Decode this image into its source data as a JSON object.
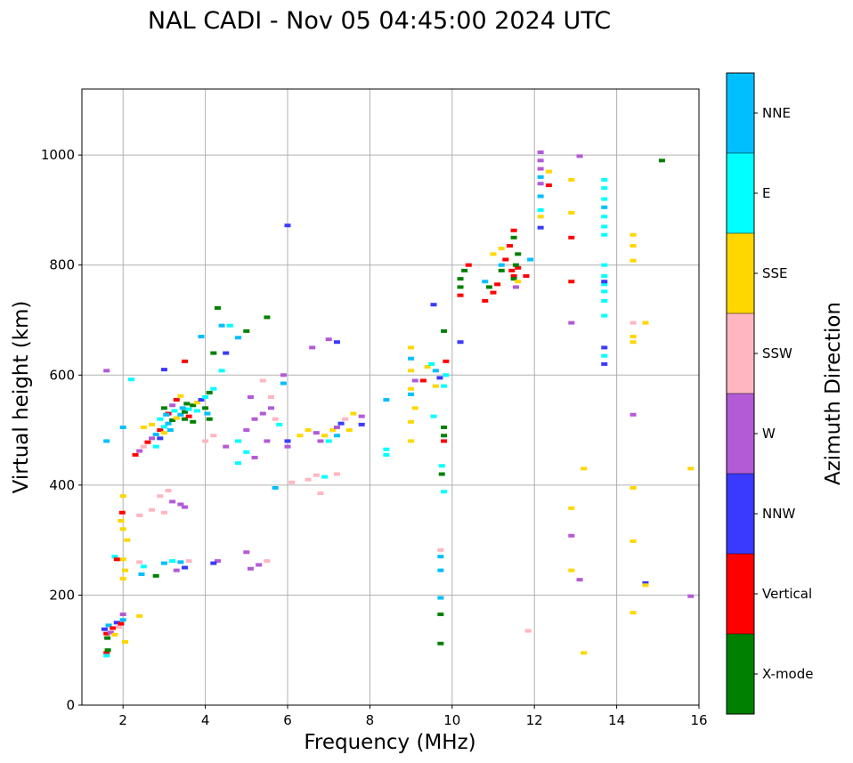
{
  "chart_data": {
    "type": "scatter",
    "title": "NAL CADI - Nov 05 04:45:00 2024 UTC",
    "xlabel": "Frequency (MHz)",
    "ylabel": "Virtual height (km)",
    "xlim": [
      1,
      16
    ],
    "ylim": [
      0,
      1120
    ],
    "xticks": [
      2,
      4,
      6,
      8,
      10,
      12,
      14,
      16
    ],
    "yticks": [
      0,
      200,
      400,
      600,
      800,
      1000
    ],
    "grid": true,
    "colorbar": {
      "label": "Azimuth Direction",
      "entries": [
        {
          "name": "X-mode",
          "color": "#008000"
        },
        {
          "name": "Vertical",
          "color": "#ff0000"
        },
        {
          "name": "NNW",
          "color": "#3a3aff"
        },
        {
          "name": "W",
          "color": "#b35ad7"
        },
        {
          "name": "SSW",
          "color": "#ffb6c1"
        },
        {
          "name": "SSE",
          "color": "#ffd700"
        },
        {
          "name": "E",
          "color": "#00ffff"
        },
        {
          "name": "NNE",
          "color": "#00bfff"
        }
      ]
    },
    "points": [
      [
        1.55,
        138,
        "NNW"
      ],
      [
        1.6,
        130,
        "Vertical"
      ],
      [
        1.62,
        122,
        "X-mode"
      ],
      [
        1.65,
        145,
        "NNE"
      ],
      [
        1.7,
        132,
        "W"
      ],
      [
        1.75,
        140,
        "Vertical"
      ],
      [
        1.8,
        128,
        "SSE"
      ],
      [
        1.85,
        150,
        "NNW"
      ],
      [
        1.9,
        142,
        "SSW"
      ],
      [
        1.95,
        148,
        "Vertical"
      ],
      [
        2.0,
        155,
        "NNE"
      ],
      [
        1.6,
        95,
        "Vertical"
      ],
      [
        1.6,
        90,
        "E"
      ],
      [
        1.63,
        100,
        "X-mode"
      ],
      [
        2.05,
        115,
        "SSE"
      ],
      [
        2.0,
        165,
        "W"
      ],
      [
        2.4,
        162,
        "SSE"
      ],
      [
        2.0,
        230,
        "SSE"
      ],
      [
        2.05,
        245,
        "SSE"
      ],
      [
        2.0,
        265,
        "SSE"
      ],
      [
        2.1,
        300,
        "SSE"
      ],
      [
        2.0,
        320,
        "SSE"
      ],
      [
        1.95,
        335,
        "SSE"
      ],
      [
        1.98,
        350,
        "Vertical"
      ],
      [
        2.0,
        380,
        "SSE"
      ],
      [
        1.8,
        270,
        "E"
      ],
      [
        1.85,
        265,
        "Vertical"
      ],
      [
        2.4,
        260,
        "SSW"
      ],
      [
        2.5,
        252,
        "E"
      ],
      [
        2.45,
        238,
        "NNE"
      ],
      [
        2.8,
        235,
        "X-mode"
      ],
      [
        3.0,
        258,
        "NNE"
      ],
      [
        3.2,
        262,
        "E"
      ],
      [
        3.4,
        260,
        "NNE"
      ],
      [
        3.3,
        245,
        "W"
      ],
      [
        3.5,
        250,
        "NNW"
      ],
      [
        3.6,
        262,
        "SSW"
      ],
      [
        4.3,
        262,
        "W"
      ],
      [
        4.2,
        258,
        "NNW"
      ],
      [
        5.0,
        278,
        "W"
      ],
      [
        5.1,
        248,
        "W"
      ],
      [
        5.3,
        255,
        "W"
      ],
      [
        5.5,
        262,
        "SSW"
      ],
      [
        2.4,
        345,
        "SSW"
      ],
      [
        2.7,
        355,
        "SSW"
      ],
      [
        3.0,
        350,
        "SSW"
      ],
      [
        3.2,
        370,
        "W"
      ],
      [
        3.4,
        365,
        "W"
      ],
      [
        3.5,
        360,
        "W"
      ],
      [
        2.9,
        380,
        "SSW"
      ],
      [
        3.1,
        390,
        "SSW"
      ],
      [
        2.3,
        455,
        "Vertical"
      ],
      [
        2.4,
        462,
        "W"
      ],
      [
        2.5,
        470,
        "SSW"
      ],
      [
        2.6,
        478,
        "Vertical"
      ],
      [
        2.7,
        485,
        "W"
      ],
      [
        2.8,
        492,
        "NNE"
      ],
      [
        2.9,
        500,
        "Vertical"
      ],
      [
        3.0,
        506,
        "E"
      ],
      [
        3.1,
        512,
        "NNE"
      ],
      [
        3.2,
        518,
        "X-mode"
      ],
      [
        3.3,
        522,
        "SSE"
      ],
      [
        3.4,
        528,
        "NNE"
      ],
      [
        3.5,
        533,
        "X-mode"
      ],
      [
        3.6,
        538,
        "E"
      ],
      [
        3.7,
        545,
        "X-mode"
      ],
      [
        3.8,
        550,
        "SSE"
      ],
      [
        3.9,
        555,
        "NNW"
      ],
      [
        4.0,
        560,
        "E"
      ],
      [
        4.1,
        568,
        "X-mode"
      ],
      [
        4.2,
        575,
        "E"
      ],
      [
        2.8,
        470,
        "E"
      ],
      [
        2.9,
        485,
        "NNW"
      ],
      [
        3.0,
        495,
        "SSE"
      ],
      [
        3.1,
        530,
        "Vertical"
      ],
      [
        3.2,
        545,
        "W"
      ],
      [
        3.3,
        555,
        "Vertical"
      ],
      [
        3.4,
        562,
        "SSE"
      ],
      [
        3.5,
        520,
        "X-mode"
      ],
      [
        3.6,
        525,
        "Vertical"
      ],
      [
        3.7,
        515,
        "X-mode"
      ],
      [
        3.8,
        535,
        "E"
      ],
      [
        4.0,
        540,
        "X-mode"
      ],
      [
        4.05,
        530,
        "NNE"
      ],
      [
        4.1,
        520,
        "X-mode"
      ],
      [
        3.0,
        540,
        "X-mode"
      ],
      [
        3.15,
        500,
        "NNE"
      ],
      [
        2.5,
        505,
        "SSE"
      ],
      [
        2.7,
        510,
        "SSE"
      ],
      [
        2.9,
        520,
        "E"
      ],
      [
        3.05,
        528,
        "NNE"
      ],
      [
        3.25,
        535,
        "E"
      ],
      [
        3.45,
        540,
        "NNE"
      ],
      [
        3.55,
        548,
        "X-mode"
      ],
      [
        2.0,
        505,
        "NNE"
      ],
      [
        1.6,
        480,
        "NNE"
      ],
      [
        1.6,
        608,
        "W"
      ],
      [
        2.2,
        592,
        "E"
      ],
      [
        3.0,
        610,
        "NNW"
      ],
      [
        3.5,
        625,
        "Vertical"
      ],
      [
        3.9,
        670,
        "NNE"
      ],
      [
        4.3,
        722,
        "X-mode"
      ],
      [
        4.2,
        640,
        "X-mode"
      ],
      [
        4.4,
        608,
        "E"
      ],
      [
        4.8,
        668,
        "NNE"
      ],
      [
        4.5,
        640,
        "NNW"
      ],
      [
        5.0,
        680,
        "X-mode"
      ],
      [
        5.5,
        705,
        "X-mode"
      ],
      [
        4.2,
        490,
        "SSW"
      ],
      [
        4.0,
        480,
        "SSW"
      ],
      [
        4.5,
        470,
        "W"
      ],
      [
        4.8,
        480,
        "E"
      ],
      [
        5.0,
        500,
        "W"
      ],
      [
        5.2,
        520,
        "W"
      ],
      [
        5.4,
        530,
        "W"
      ],
      [
        5.6,
        540,
        "W"
      ],
      [
        5.7,
        520,
        "SSW"
      ],
      [
        5.8,
        510,
        "E"
      ],
      [
        5.9,
        600,
        "W"
      ],
      [
        5.9,
        585,
        "NNE"
      ],
      [
        5.1,
        560,
        "W"
      ],
      [
        5.4,
        590,
        "SSW"
      ],
      [
        5.6,
        560,
        "SSW"
      ],
      [
        6.0,
        480,
        "NNW"
      ],
      [
        6.0,
        470,
        "W"
      ],
      [
        5.2,
        450,
        "W"
      ],
      [
        5.5,
        480,
        "W"
      ],
      [
        5.0,
        460,
        "E"
      ],
      [
        4.8,
        440,
        "E"
      ],
      [
        5.7,
        395,
        "NNE"
      ],
      [
        6.1,
        405,
        "SSW"
      ],
      [
        6.5,
        410,
        "SSW"
      ],
      [
        6.7,
        418,
        "SSW"
      ],
      [
        6.9,
        415,
        "E"
      ],
      [
        7.2,
        420,
        "SSW"
      ],
      [
        6.8,
        385,
        "SSW"
      ],
      [
        6.5,
        500,
        "SSE"
      ],
      [
        6.7,
        495,
        "W"
      ],
      [
        6.9,
        490,
        "SSE"
      ],
      [
        7.1,
        500,
        "SSE"
      ],
      [
        7.2,
        505,
        "W"
      ],
      [
        7.3,
        512,
        "NNW"
      ],
      [
        7.4,
        520,
        "SSW"
      ],
      [
        7.6,
        530,
        "SSE"
      ],
      [
        7.8,
        525,
        "W"
      ],
      [
        7.5,
        500,
        "SSE"
      ],
      [
        7.0,
        480,
        "E"
      ],
      [
        6.3,
        490,
        "SSE"
      ],
      [
        6.8,
        480,
        "W"
      ],
      [
        6.6,
        650,
        "W"
      ],
      [
        7.0,
        665,
        "W"
      ],
      [
        7.2,
        660,
        "NNW"
      ],
      [
        7.8,
        510,
        "NNW"
      ],
      [
        7.2,
        490,
        "NNE"
      ],
      [
        8.4,
        555,
        "NNE"
      ],
      [
        8.4,
        465,
        "E"
      ],
      [
        8.4,
        455,
        "E"
      ],
      [
        9.0,
        650,
        "SSE"
      ],
      [
        9.0,
        630,
        "NNE"
      ],
      [
        9.0,
        608,
        "SSE"
      ],
      [
        9.1,
        590,
        "W"
      ],
      [
        9.0,
        575,
        "SSE"
      ],
      [
        9.0,
        565,
        "NNE"
      ],
      [
        9.1,
        540,
        "SSE"
      ],
      [
        9.0,
        515,
        "SSE"
      ],
      [
        9.0,
        480,
        "SSE"
      ],
      [
        9.3,
        590,
        "Vertical"
      ],
      [
        9.4,
        615,
        "SSE"
      ],
      [
        9.5,
        620,
        "E"
      ],
      [
        9.6,
        608,
        "NNE"
      ],
      [
        9.7,
        595,
        "NNW"
      ],
      [
        9.85,
        625,
        "Vertical"
      ],
      [
        9.8,
        680,
        "X-mode"
      ],
      [
        9.55,
        728,
        "NNW"
      ],
      [
        9.6,
        580,
        "SSE"
      ],
      [
        9.55,
        525,
        "E"
      ],
      [
        9.85,
        600,
        "E"
      ],
      [
        9.8,
        580,
        "E"
      ],
      [
        9.8,
        490,
        "X-mode"
      ],
      [
        9.8,
        505,
        "X-mode"
      ],
      [
        9.8,
        480,
        "Vertical"
      ],
      [
        9.75,
        435,
        "E"
      ],
      [
        9.75,
        420,
        "X-mode"
      ],
      [
        9.8,
        388,
        "E"
      ],
      [
        9.72,
        282,
        "SSW"
      ],
      [
        9.72,
        270,
        "NNE"
      ],
      [
        9.72,
        245,
        "NNE"
      ],
      [
        9.72,
        195,
        "NNE"
      ],
      [
        9.72,
        165,
        "X-mode"
      ],
      [
        9.72,
        112,
        "X-mode"
      ],
      [
        10.2,
        660,
        "NNW"
      ],
      [
        10.2,
        745,
        "Vertical"
      ],
      [
        10.2,
        760,
        "X-mode"
      ],
      [
        10.2,
        775,
        "X-mode"
      ],
      [
        10.3,
        790,
        "X-mode"
      ],
      [
        10.4,
        800,
        "Vertical"
      ],
      [
        10.8,
        770,
        "NNE"
      ],
      [
        10.8,
        735,
        "Vertical"
      ],
      [
        11.0,
        750,
        "Vertical"
      ],
      [
        11.1,
        765,
        "Vertical"
      ],
      [
        11.2,
        790,
        "X-mode"
      ],
      [
        11.3,
        810,
        "Vertical"
      ],
      [
        11.4,
        835,
        "Vertical"
      ],
      [
        11.5,
        850,
        "X-mode"
      ],
      [
        11.5,
        863,
        "Vertical"
      ],
      [
        11.6,
        820,
        "X-mode"
      ],
      [
        11.5,
        780,
        "Vertical"
      ],
      [
        11.55,
        760,
        "W"
      ],
      [
        11.2,
        800,
        "NNE"
      ],
      [
        11.45,
        790,
        "Vertical"
      ],
      [
        11.5,
        775,
        "X-mode"
      ],
      [
        11.6,
        795,
        "Vertical"
      ],
      [
        11.6,
        770,
        "SSE"
      ],
      [
        11.55,
        800,
        "X-mode"
      ],
      [
        11.9,
        810,
        "NNE"
      ],
      [
        11.8,
        780,
        "Vertical"
      ],
      [
        11.2,
        830,
        "SSE"
      ],
      [
        11.0,
        820,
        "SSE"
      ],
      [
        10.9,
        760,
        "X-mode"
      ],
      [
        12.15,
        1005,
        "W"
      ],
      [
        12.15,
        990,
        "W"
      ],
      [
        12.15,
        975,
        "W"
      ],
      [
        12.15,
        960,
        "NNE"
      ],
      [
        12.15,
        948,
        "W"
      ],
      [
        12.35,
        945,
        "Vertical"
      ],
      [
        12.35,
        970,
        "SSE"
      ],
      [
        12.15,
        925,
        "NNE"
      ],
      [
        12.15,
        900,
        "E"
      ],
      [
        12.15,
        888,
        "SSE"
      ],
      [
        12.15,
        868,
        "NNW"
      ],
      [
        11.85,
        135,
        "SSW"
      ],
      [
        12.9,
        955,
        "SSE"
      ],
      [
        12.9,
        895,
        "SSE"
      ],
      [
        12.9,
        850,
        "Vertical"
      ],
      [
        12.9,
        770,
        "Vertical"
      ],
      [
        12.9,
        695,
        "W"
      ],
      [
        12.9,
        358,
        "SSE"
      ],
      [
        12.9,
        308,
        "W"
      ],
      [
        12.9,
        245,
        "SSE"
      ],
      [
        13.1,
        228,
        "W"
      ],
      [
        13.1,
        998,
        "W"
      ],
      [
        13.2,
        430,
        "SSE"
      ],
      [
        13.2,
        95,
        "SSE"
      ],
      [
        13.7,
        955,
        "E"
      ],
      [
        13.7,
        940,
        "E"
      ],
      [
        13.7,
        920,
        "E"
      ],
      [
        13.7,
        905,
        "NNE"
      ],
      [
        13.7,
        888,
        "E"
      ],
      [
        13.7,
        870,
        "E"
      ],
      [
        13.7,
        855,
        "E"
      ],
      [
        13.7,
        800,
        "E"
      ],
      [
        13.7,
        780,
        "E"
      ],
      [
        13.7,
        765,
        "E"
      ],
      [
        13.7,
        752,
        "E"
      ],
      [
        13.7,
        735,
        "E"
      ],
      [
        13.7,
        708,
        "E"
      ],
      [
        13.7,
        650,
        "NNW"
      ],
      [
        13.7,
        635,
        "E"
      ],
      [
        13.7,
        620,
        "NNW"
      ],
      [
        13.7,
        770,
        "NNW"
      ],
      [
        14.4,
        855,
        "SSE"
      ],
      [
        14.4,
        835,
        "SSE"
      ],
      [
        14.4,
        808,
        "SSE"
      ],
      [
        14.4,
        695,
        "SSW"
      ],
      [
        14.7,
        695,
        "SSE"
      ],
      [
        14.4,
        670,
        "SSE"
      ],
      [
        14.4,
        660,
        "SSE"
      ],
      [
        14.4,
        528,
        "W"
      ],
      [
        14.4,
        395,
        "SSE"
      ],
      [
        14.4,
        298,
        "SSE"
      ],
      [
        14.7,
        222,
        "NNW"
      ],
      [
        14.7,
        218,
        "SSE"
      ],
      [
        14.4,
        168,
        "SSE"
      ],
      [
        15.1,
        990,
        "X-mode"
      ],
      [
        15.8,
        430,
        "SSE"
      ],
      [
        15.8,
        198,
        "W"
      ],
      [
        6.0,
        872,
        "NNW"
      ],
      [
        4.6,
        690,
        "E"
      ],
      [
        4.4,
        690,
        "NNE"
      ]
    ]
  }
}
